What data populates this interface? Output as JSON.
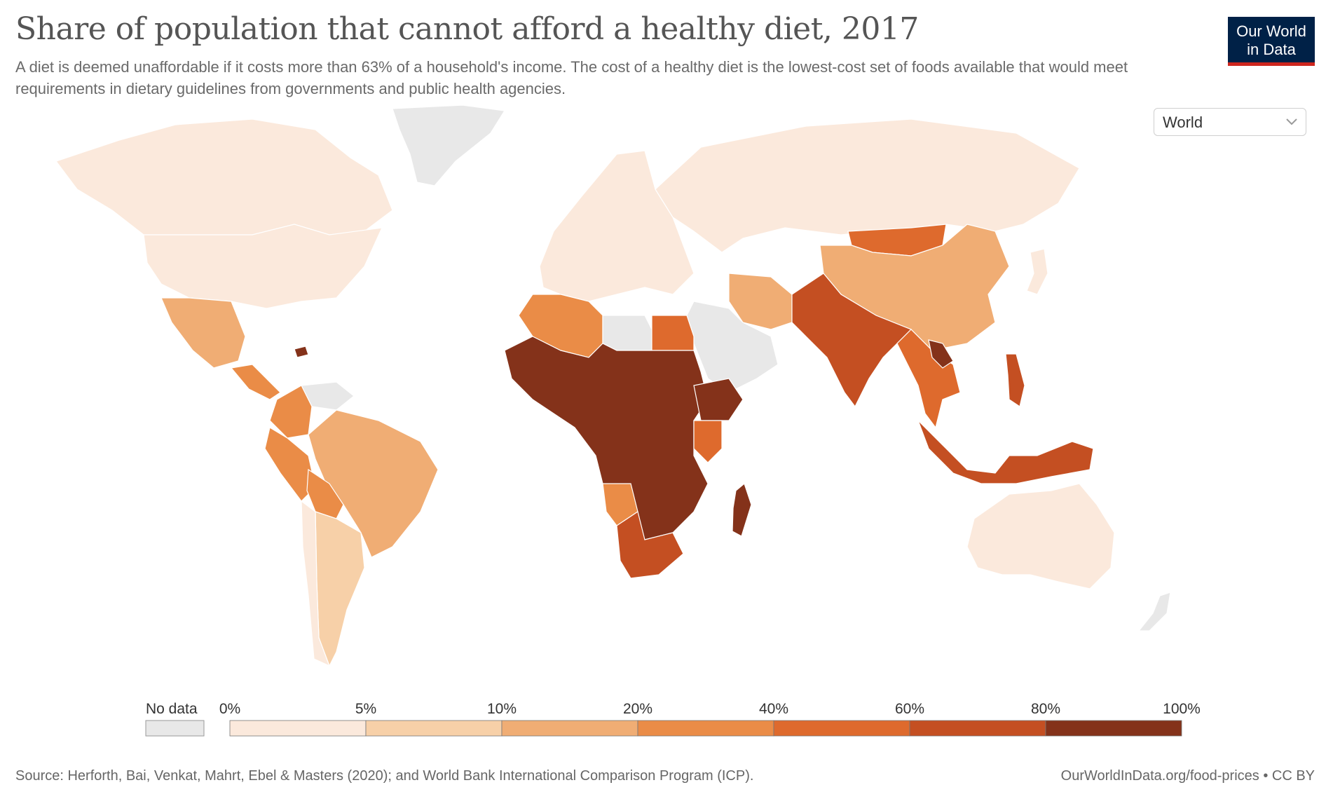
{
  "title": "Share of population that cannot afford a healthy diet, 2017",
  "subtitle": "A diet is deemed unaffordable if it costs more than 63% of a household's income. The cost of a healthy diet is the lowest-cost set of foods available that would meet requirements in dietary guidelines from governments and public health agencies.",
  "logo": {
    "line1": "Our World",
    "line2": "in Data"
  },
  "region_select": {
    "value": "World"
  },
  "colors": {
    "no_data": "#e8e8e8",
    "bins": [
      "#fbe9dc",
      "#f7d0a8",
      "#f0ad74",
      "#ea8c47",
      "#de6a2d",
      "#c44f22",
      "#84321a"
    ],
    "border": "#ffffff",
    "ocean": "#ffffff"
  },
  "legend": {
    "no_data_label": "No data",
    "ticks": [
      "0%",
      "5%",
      "10%",
      "20%",
      "40%",
      "60%",
      "80%",
      "100%"
    ]
  },
  "regions": [
    {
      "name": "Canada",
      "bin": 0
    },
    {
      "name": "United States",
      "bin": 0
    },
    {
      "name": "Mexico",
      "bin": 2
    },
    {
      "name": "Central America",
      "bin": 3
    },
    {
      "name": "Haiti",
      "bin": 6
    },
    {
      "name": "Colombia",
      "bin": 3
    },
    {
      "name": "Venezuela",
      "bin": -1
    },
    {
      "name": "Peru",
      "bin": 3
    },
    {
      "name": "Brazil",
      "bin": 2
    },
    {
      "name": "Bolivia",
      "bin": 3
    },
    {
      "name": "Argentina",
      "bin": 1
    },
    {
      "name": "Chile",
      "bin": 0
    },
    {
      "name": "Greenland",
      "bin": -1
    },
    {
      "name": "Europe",
      "bin": 0
    },
    {
      "name": "Russia",
      "bin": 0
    },
    {
      "name": "Mongolia",
      "bin": 4
    },
    {
      "name": "China",
      "bin": 2
    },
    {
      "name": "India",
      "bin": 5
    },
    {
      "name": "Southeast Asia",
      "bin": 4
    },
    {
      "name": "Laos",
      "bin": 6
    },
    {
      "name": "Indonesia",
      "bin": 5
    },
    {
      "name": "Philippines",
      "bin": 5
    },
    {
      "name": "Middle East",
      "bin": -1
    },
    {
      "name": "Iran",
      "bin": 2
    },
    {
      "name": "Egypt",
      "bin": 4
    },
    {
      "name": "North Africa",
      "bin": 3
    },
    {
      "name": "Libya",
      "bin": -1
    },
    {
      "name": "Sub-Saharan Africa",
      "bin": 6
    },
    {
      "name": "Ethiopia",
      "bin": 6
    },
    {
      "name": "Kenya",
      "bin": 4
    },
    {
      "name": "Angola",
      "bin": 3
    },
    {
      "name": "South Africa",
      "bin": 5
    },
    {
      "name": "Madagascar",
      "bin": 6
    },
    {
      "name": "Australia",
      "bin": 0
    },
    {
      "name": "New Zealand",
      "bin": -1
    },
    {
      "name": "Japan",
      "bin": 0
    }
  ],
  "source": "Source: Herforth, Bai, Venkat, Mahrt, Ebel & Masters (2020); and World Bank International Comparison Program (ICP).",
  "credit": "OurWorldInData.org/food-prices • CC BY"
}
